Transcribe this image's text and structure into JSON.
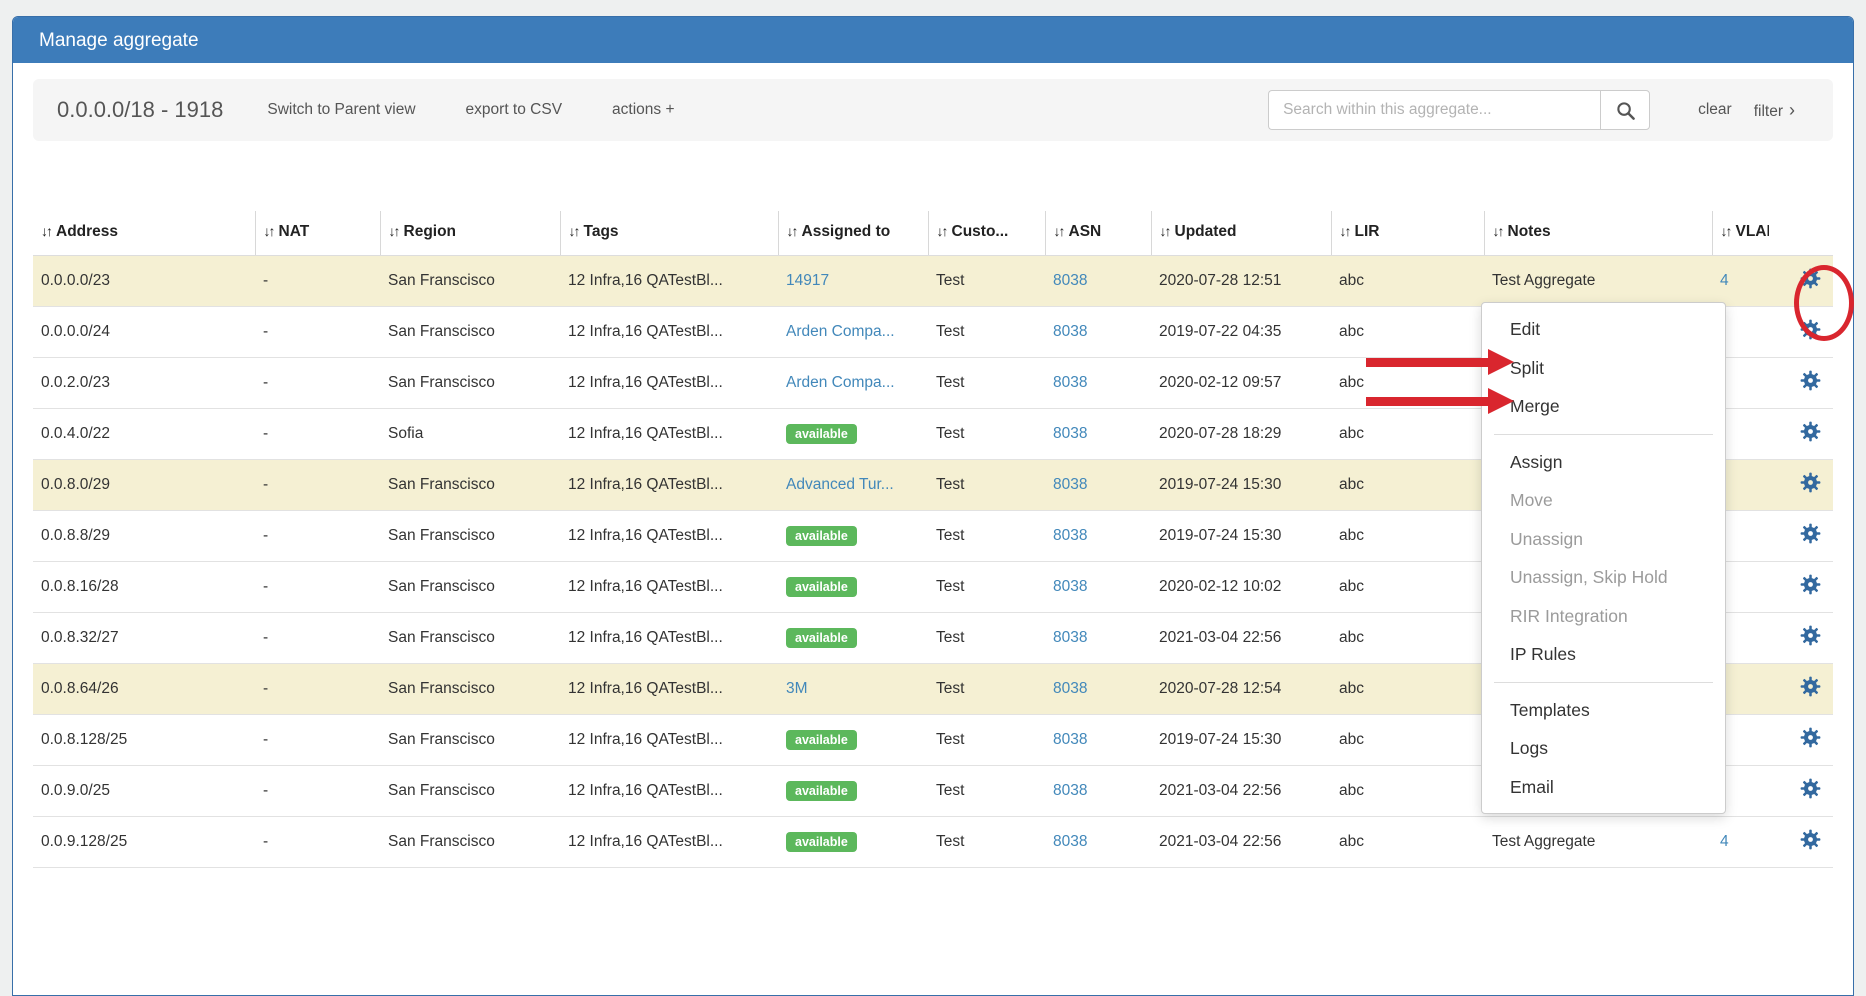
{
  "theme": {
    "header_blue": "#3d7cba",
    "link_blue": "#4288ba",
    "gear_blue": "#33699f",
    "badge_green": "#5cb85c",
    "row_highlight": "#f5f0d3",
    "annotation_red": "#d9262e",
    "disabled_text": "#9b9b9b"
  },
  "icons": {
    "sort": "↓↑",
    "plus": "+",
    "chevron_right": "›"
  },
  "header": {
    "title": "Manage aggregate"
  },
  "toolbar": {
    "aggregate_label": "0.0.0.0/18 - 1918",
    "switch_parent_label": "Switch to Parent view",
    "export_csv_label": "export to CSV",
    "actions_label": "actions",
    "search_placeholder": "Search within this aggregate...",
    "search_value": "",
    "clear_label": "clear",
    "filter_label": "filter"
  },
  "table": {
    "columns": [
      {
        "key": "address",
        "label": "Address"
      },
      {
        "key": "nat",
        "label": "NAT"
      },
      {
        "key": "region",
        "label": "Region"
      },
      {
        "key": "tags",
        "label": "Tags"
      },
      {
        "key": "assigned",
        "label": "Assigned to"
      },
      {
        "key": "customer",
        "label": "Custo..."
      },
      {
        "key": "asn",
        "label": "ASN"
      },
      {
        "key": "updated",
        "label": "Updated"
      },
      {
        "key": "lir",
        "label": "LIR"
      },
      {
        "key": "notes",
        "label": "Notes"
      },
      {
        "key": "vlan",
        "label": "VLAN"
      }
    ],
    "rows": [
      {
        "address": "0.0.0.0/23",
        "nat": "-",
        "region": "San Franscisco",
        "tags": "12 Infra,16 QATestBl...",
        "assigned": {
          "kind": "link",
          "text": "14917"
        },
        "customer": "Test",
        "asn": "8038",
        "updated": "2020-07-28 12:51",
        "lir": "abc",
        "notes": "Test Aggregate",
        "vlan": "4",
        "highlighted": true
      },
      {
        "address": "0.0.0.0/24",
        "nat": "-",
        "region": "San Franscisco",
        "tags": "12 Infra,16 QATestBl...",
        "assigned": {
          "kind": "link",
          "text": "Arden Compa..."
        },
        "customer": "Test",
        "asn": "8038",
        "updated": "2019-07-22 04:35",
        "lir": "abc",
        "notes": "",
        "vlan": "",
        "highlighted": false
      },
      {
        "address": "0.0.2.0/23",
        "nat": "-",
        "region": "San Franscisco",
        "tags": "12 Infra,16 QATestBl...",
        "assigned": {
          "kind": "link",
          "text": "Arden Compa..."
        },
        "customer": "Test",
        "asn": "8038",
        "updated": "2020-02-12 09:57",
        "lir": "abc",
        "notes": "",
        "vlan": "",
        "highlighted": false
      },
      {
        "address": "0.0.4.0/22",
        "nat": "-",
        "region": "Sofia",
        "tags": "12 Infra,16 QATestBl...",
        "assigned": {
          "kind": "badge",
          "text": "available"
        },
        "customer": "Test",
        "asn": "8038",
        "updated": "2020-07-28 18:29",
        "lir": "abc",
        "notes": "",
        "vlan": "",
        "highlighted": false
      },
      {
        "address": "0.0.8.0/29",
        "nat": "-",
        "region": "San Franscisco",
        "tags": "12 Infra,16 QATestBl...",
        "assigned": {
          "kind": "link",
          "text": "Advanced Tur..."
        },
        "customer": "Test",
        "asn": "8038",
        "updated": "2019-07-24 15:30",
        "lir": "abc",
        "notes": "",
        "vlan": "",
        "highlighted": true
      },
      {
        "address": "0.0.8.8/29",
        "nat": "-",
        "region": "San Franscisco",
        "tags": "12 Infra,16 QATestBl...",
        "assigned": {
          "kind": "badge",
          "text": "available"
        },
        "customer": "Test",
        "asn": "8038",
        "updated": "2019-07-24 15:30",
        "lir": "abc",
        "notes": "",
        "vlan": "",
        "highlighted": false
      },
      {
        "address": "0.0.8.16/28",
        "nat": "-",
        "region": "San Franscisco",
        "tags": "12 Infra,16 QATestBl...",
        "assigned": {
          "kind": "badge",
          "text": "available"
        },
        "customer": "Test",
        "asn": "8038",
        "updated": "2020-02-12 10:02",
        "lir": "abc",
        "notes": "",
        "vlan": "",
        "highlighted": false
      },
      {
        "address": "0.0.8.32/27",
        "nat": "-",
        "region": "San Franscisco",
        "tags": "12 Infra,16 QATestBl...",
        "assigned": {
          "kind": "badge",
          "text": "available"
        },
        "customer": "Test",
        "asn": "8038",
        "updated": "2021-03-04 22:56",
        "lir": "abc",
        "notes": "",
        "vlan": "",
        "highlighted": false
      },
      {
        "address": "0.0.8.64/26",
        "nat": "-",
        "region": "San Franscisco",
        "tags": "12 Infra,16 QATestBl...",
        "assigned": {
          "kind": "link",
          "text": "3M"
        },
        "customer": "Test",
        "asn": "8038",
        "updated": "2020-07-28 12:54",
        "lir": "abc",
        "notes": "",
        "vlan": "",
        "highlighted": true
      },
      {
        "address": "0.0.8.128/25",
        "nat": "-",
        "region": "San Franscisco",
        "tags": "12 Infra,16 QATestBl...",
        "assigned": {
          "kind": "badge",
          "text": "available"
        },
        "customer": "Test",
        "asn": "8038",
        "updated": "2019-07-24 15:30",
        "lir": "abc",
        "notes": "",
        "vlan": "",
        "highlighted": false
      },
      {
        "address": "0.0.9.0/25",
        "nat": "-",
        "region": "San Franscisco",
        "tags": "12 Infra,16 QATestBl...",
        "assigned": {
          "kind": "badge",
          "text": "available"
        },
        "customer": "Test",
        "asn": "8038",
        "updated": "2021-03-04 22:56",
        "lir": "abc",
        "notes": "",
        "vlan": "",
        "highlighted": false
      },
      {
        "address": "0.0.9.128/25",
        "nat": "-",
        "region": "San Franscisco",
        "tags": "12 Infra,16 QATestBl...",
        "assigned": {
          "kind": "badge",
          "text": "available"
        },
        "customer": "Test",
        "asn": "8038",
        "updated": "2021-03-04 22:56",
        "lir": "abc",
        "notes": "Test Aggregate",
        "vlan": "4",
        "highlighted": false
      }
    ]
  },
  "menu": {
    "items": [
      {
        "label": "Edit",
        "enabled": true
      },
      {
        "label": "Split",
        "enabled": true
      },
      {
        "label": "Merge",
        "enabled": true
      },
      {
        "divider": true
      },
      {
        "label": "Assign",
        "enabled": true
      },
      {
        "label": "Move",
        "enabled": false
      },
      {
        "label": "Unassign",
        "enabled": false
      },
      {
        "label": "Unassign, Skip Hold",
        "enabled": false
      },
      {
        "label": "RIR Integration",
        "enabled": false
      },
      {
        "label": "IP Rules",
        "enabled": true
      },
      {
        "divider": true
      },
      {
        "label": "Templates",
        "enabled": true
      },
      {
        "label": "Logs",
        "enabled": true
      },
      {
        "label": "Email",
        "enabled": true
      }
    ]
  },
  "annotations": {
    "circle_target": "row-1 actions gear",
    "arrow_targets": [
      "Split",
      "Merge"
    ],
    "color": "#d9262e"
  }
}
